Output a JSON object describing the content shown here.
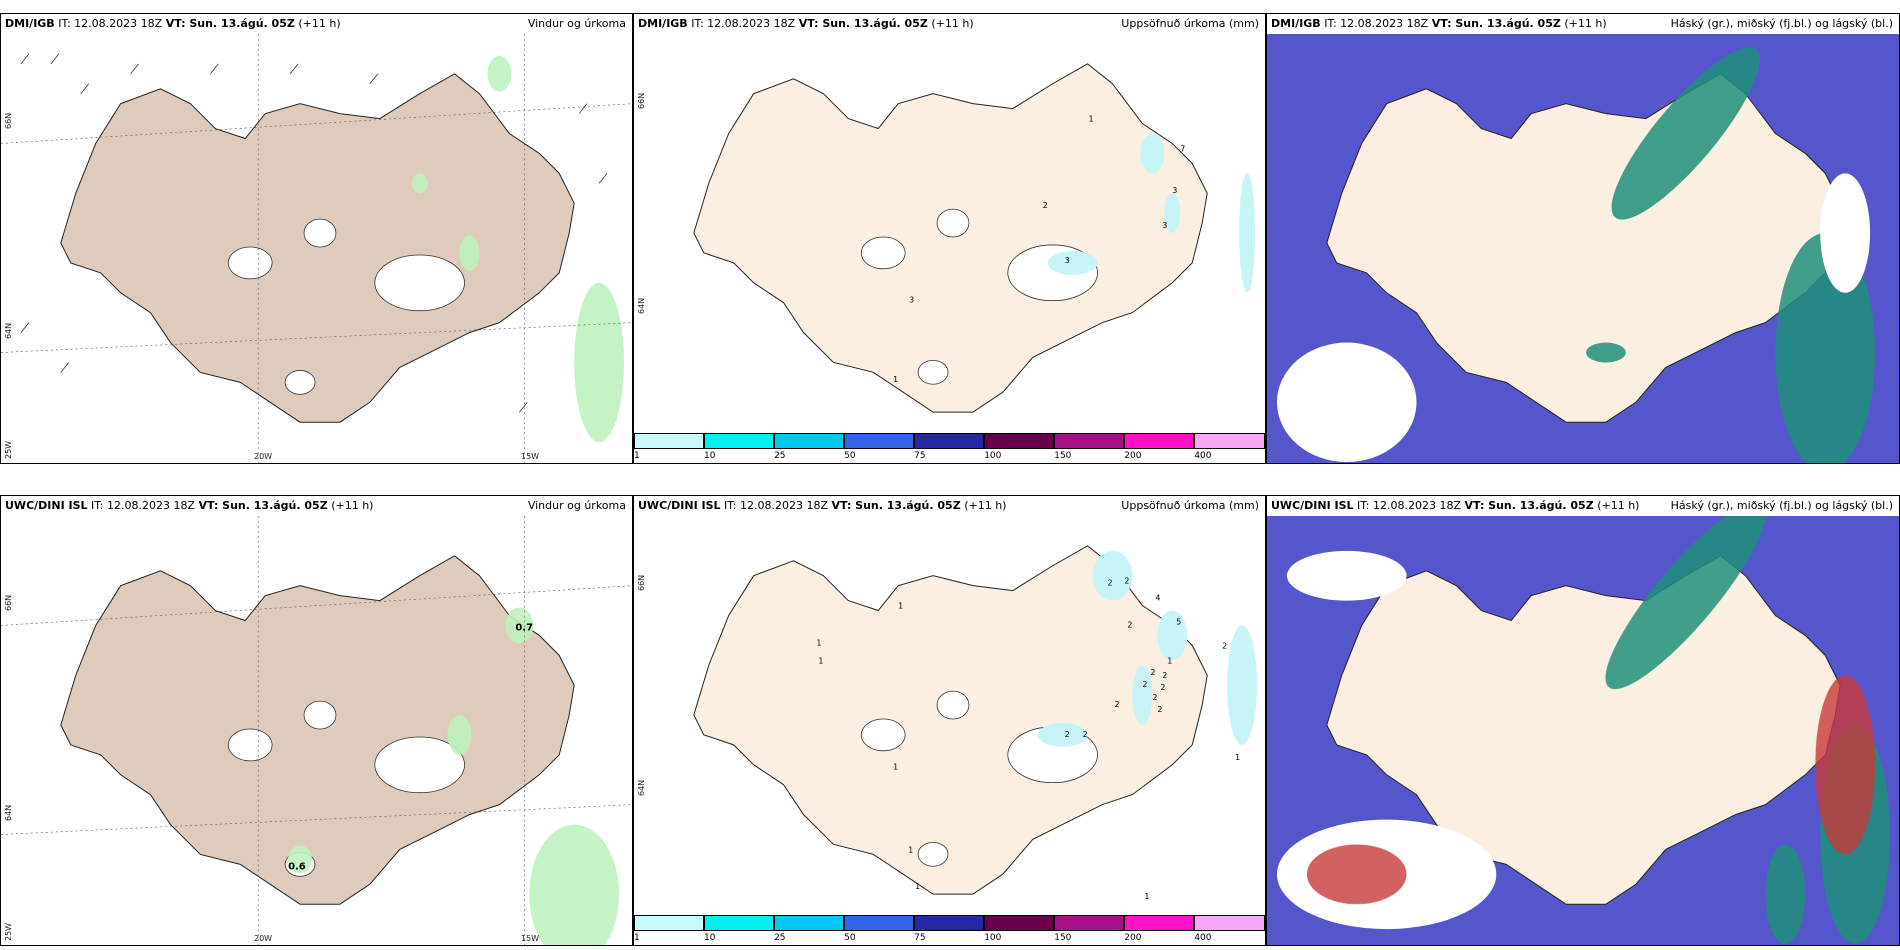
{
  "colors": {
    "land": "#dfcbbb",
    "land_light": "#fbefe2",
    "ocean": "#ffffff",
    "precip_green": "#bff2bf",
    "precip_cyan": "#c7f4f7",
    "cloud_high": "#1f8f7a",
    "cloud_mid": "#5656cc",
    "cloud_low": "#c73a3a"
  },
  "icons": [
    "wind-barb-icon",
    "contour-icon"
  ],
  "panels": [
    {
      "model": "DMI/IGB",
      "it_label": "IT:",
      "it": "12.08.2023 18Z",
      "vt_label": "VT: Sun. 13.ágú. 05Z",
      "lead": "(+11 h)",
      "title": "Vindur og úrkoma",
      "axis": {
        "lon1": "20W",
        "lon2": "15W",
        "lat1": "66N",
        "lat2": "64N",
        "lon0": "25W"
      }
    },
    {
      "model": "DMI/IGB",
      "it_label": "IT:",
      "it": "12.08.2023 18Z",
      "vt_label": "VT: Sun. 13.ágú. 05Z",
      "lead": "(+11 h)",
      "title": "Uppsöfnuð úrkoma (mm)",
      "axis": {
        "lat1": "66N",
        "lat2": "64N"
      }
    },
    {
      "model": "DMI/IGB",
      "it_label": "IT:",
      "it": "12.08.2023 18Z",
      "vt_label": "VT: Sun. 13.ágú. 05Z",
      "lead": "(+11 h)",
      "title": "Háský (gr.), miðský (fj.bl.) og lágský (bl.)"
    },
    {
      "model": "UWC/DINI ISL",
      "it_label": "IT:",
      "it": "12.08.2023 18Z",
      "vt_label": "VT: Sun. 13.ágú. 05Z",
      "lead": "(+11 h)",
      "title": "Vindur og úrkoma",
      "axis": {
        "lon1": "20W",
        "lon2": "15W",
        "lat1": "66N",
        "lat2": "64N",
        "lon0": "25W"
      }
    },
    {
      "model": "UWC/DINI ISL",
      "it_label": "IT:",
      "it": "12.08.2023 18Z",
      "vt_label": "VT: Sun. 13.ágú. 05Z",
      "lead": "(+11 h)",
      "title": "Uppsöfnuð úrkoma (mm)",
      "axis": {
        "lat1": "66N",
        "lat2": "64N"
      }
    },
    {
      "model": "UWC/DINI ISL",
      "it_label": "IT:",
      "it": "12.08.2023 18Z",
      "vt_label": "VT: Sun. 13.ágú. 05Z",
      "lead": "(+11 h)",
      "title": "Háský (gr.), miðský (fj.bl.) og lágský (bl.)"
    }
  ],
  "colorbar": {
    "labels": [
      "1",
      "10",
      "25",
      "50",
      "75",
      "100",
      "150",
      "200",
      "400"
    ],
    "colors": [
      "#c7fbfb",
      "#00f0f0",
      "#00c8f0",
      "#2f66e8",
      "#2727a6",
      "#6a004a",
      "#a8108a",
      "#ff11c8",
      "#f6a8f4"
    ]
  },
  "precip_labels_top": [
    "1",
    "7",
    "3",
    "2",
    "3",
    "3",
    "3",
    "1"
  ],
  "precip_labels_bottom": [
    "2",
    "2",
    "4",
    "2",
    "5",
    "2",
    "1",
    "1",
    "1",
    "1",
    "2",
    "2",
    "2",
    "2",
    "2",
    "2",
    "2",
    "1",
    "1",
    "1",
    "2",
    "2",
    "1",
    "1"
  ],
  "wind_values": {
    "top": [],
    "bottom": [
      "0.7",
      "0.6"
    ]
  }
}
